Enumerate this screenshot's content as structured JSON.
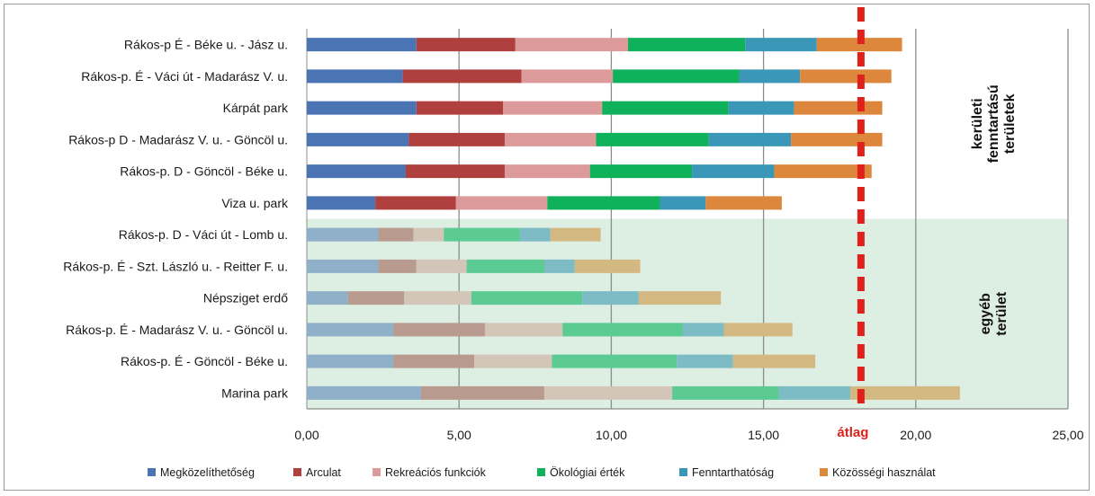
{
  "chart_data": {
    "type": "bar",
    "orientation": "horizontal",
    "stacked": true,
    "categories": [
      "Rákos-p É - Béke u. - Jász u.",
      "Rákos-p. É - Váci út - Madarász V. u.",
      "Kárpát park",
      "Rákos-p D - Madarász V. u. - Göncöl u.",
      "Rákos-p. D - Göncöl - Béke u.",
      "Viza u. park",
      "Rákos-p. D - Váci út - Lomb u.",
      "Rákos-p. É - Szt. László u. - Reitter F. u.",
      "Népsziget erdő",
      "Rákos-p. É - Madarász V. u. - Göncöl u.",
      "Rákos-p. É - Göncöl - Béke u.",
      "Marina park"
    ],
    "series": [
      {
        "name": "Megközelíthetőség",
        "color": "#4a74b4",
        "faded_color": "#8fb0c8",
        "values": [
          3.6,
          3.15,
          3.6,
          3.35,
          3.25,
          2.25,
          2.35,
          2.35,
          1.35,
          2.85,
          2.85,
          3.75
        ]
      },
      {
        "name": "Arculat",
        "color": "#b0403d",
        "faded_color": "#b99a8f",
        "values": [
          3.25,
          3.9,
          2.85,
          3.15,
          3.25,
          2.65,
          1.15,
          1.25,
          1.85,
          3.0,
          2.65,
          4.05
        ]
      },
      {
        "name": "Rekreációs funkciók",
        "color": "#dd9a9a",
        "faded_color": "#d3c5b8",
        "values": [
          3.7,
          3.0,
          3.25,
          3.0,
          2.8,
          3.0,
          1.0,
          1.65,
          2.2,
          2.55,
          2.55,
          4.2
        ]
      },
      {
        "name": "Ökológiai érték",
        "color": "#0fb15a",
        "faded_color": "#5cca93",
        "values": [
          3.85,
          4.15,
          4.15,
          3.7,
          3.35,
          3.7,
          2.5,
          2.55,
          3.65,
          3.95,
          4.1,
          3.5
        ]
      },
      {
        "name": "Fenntarthatóság",
        "color": "#3a97b8",
        "faded_color": "#7dbcc5",
        "values": [
          2.35,
          2.0,
          2.15,
          2.7,
          2.7,
          1.5,
          1.0,
          1.0,
          1.85,
          1.35,
          1.85,
          2.35
        ]
      },
      {
        "name": "Közösségi használat",
        "color": "#dd873d",
        "faded_color": "#d4b882",
        "values": [
          2.8,
          3.0,
          2.9,
          3.0,
          3.2,
          2.5,
          1.65,
          2.15,
          2.7,
          2.25,
          2.7,
          3.6
        ]
      }
    ],
    "xlim": [
      0,
      25
    ],
    "xticks": [
      "0,00",
      "5,00",
      "10,00",
      "15,00",
      "20,00",
      "25,00"
    ],
    "xtick_values": [
      0,
      5,
      10,
      15,
      20,
      25
    ],
    "average": {
      "label": "átlag",
      "value": 18.2,
      "color": "#e0201b"
    },
    "groups": [
      {
        "label_lines": [
          "kerületi",
          "fenntartású",
          "területek"
        ],
        "first": 0,
        "last": 5,
        "shaded": false
      },
      {
        "label_lines": [
          "egyéb",
          "terület"
        ],
        "first": 6,
        "last": 11,
        "shaded": true,
        "shade_color": "#ddeee3"
      }
    ],
    "grid": true,
    "legend_position": "bottom"
  }
}
